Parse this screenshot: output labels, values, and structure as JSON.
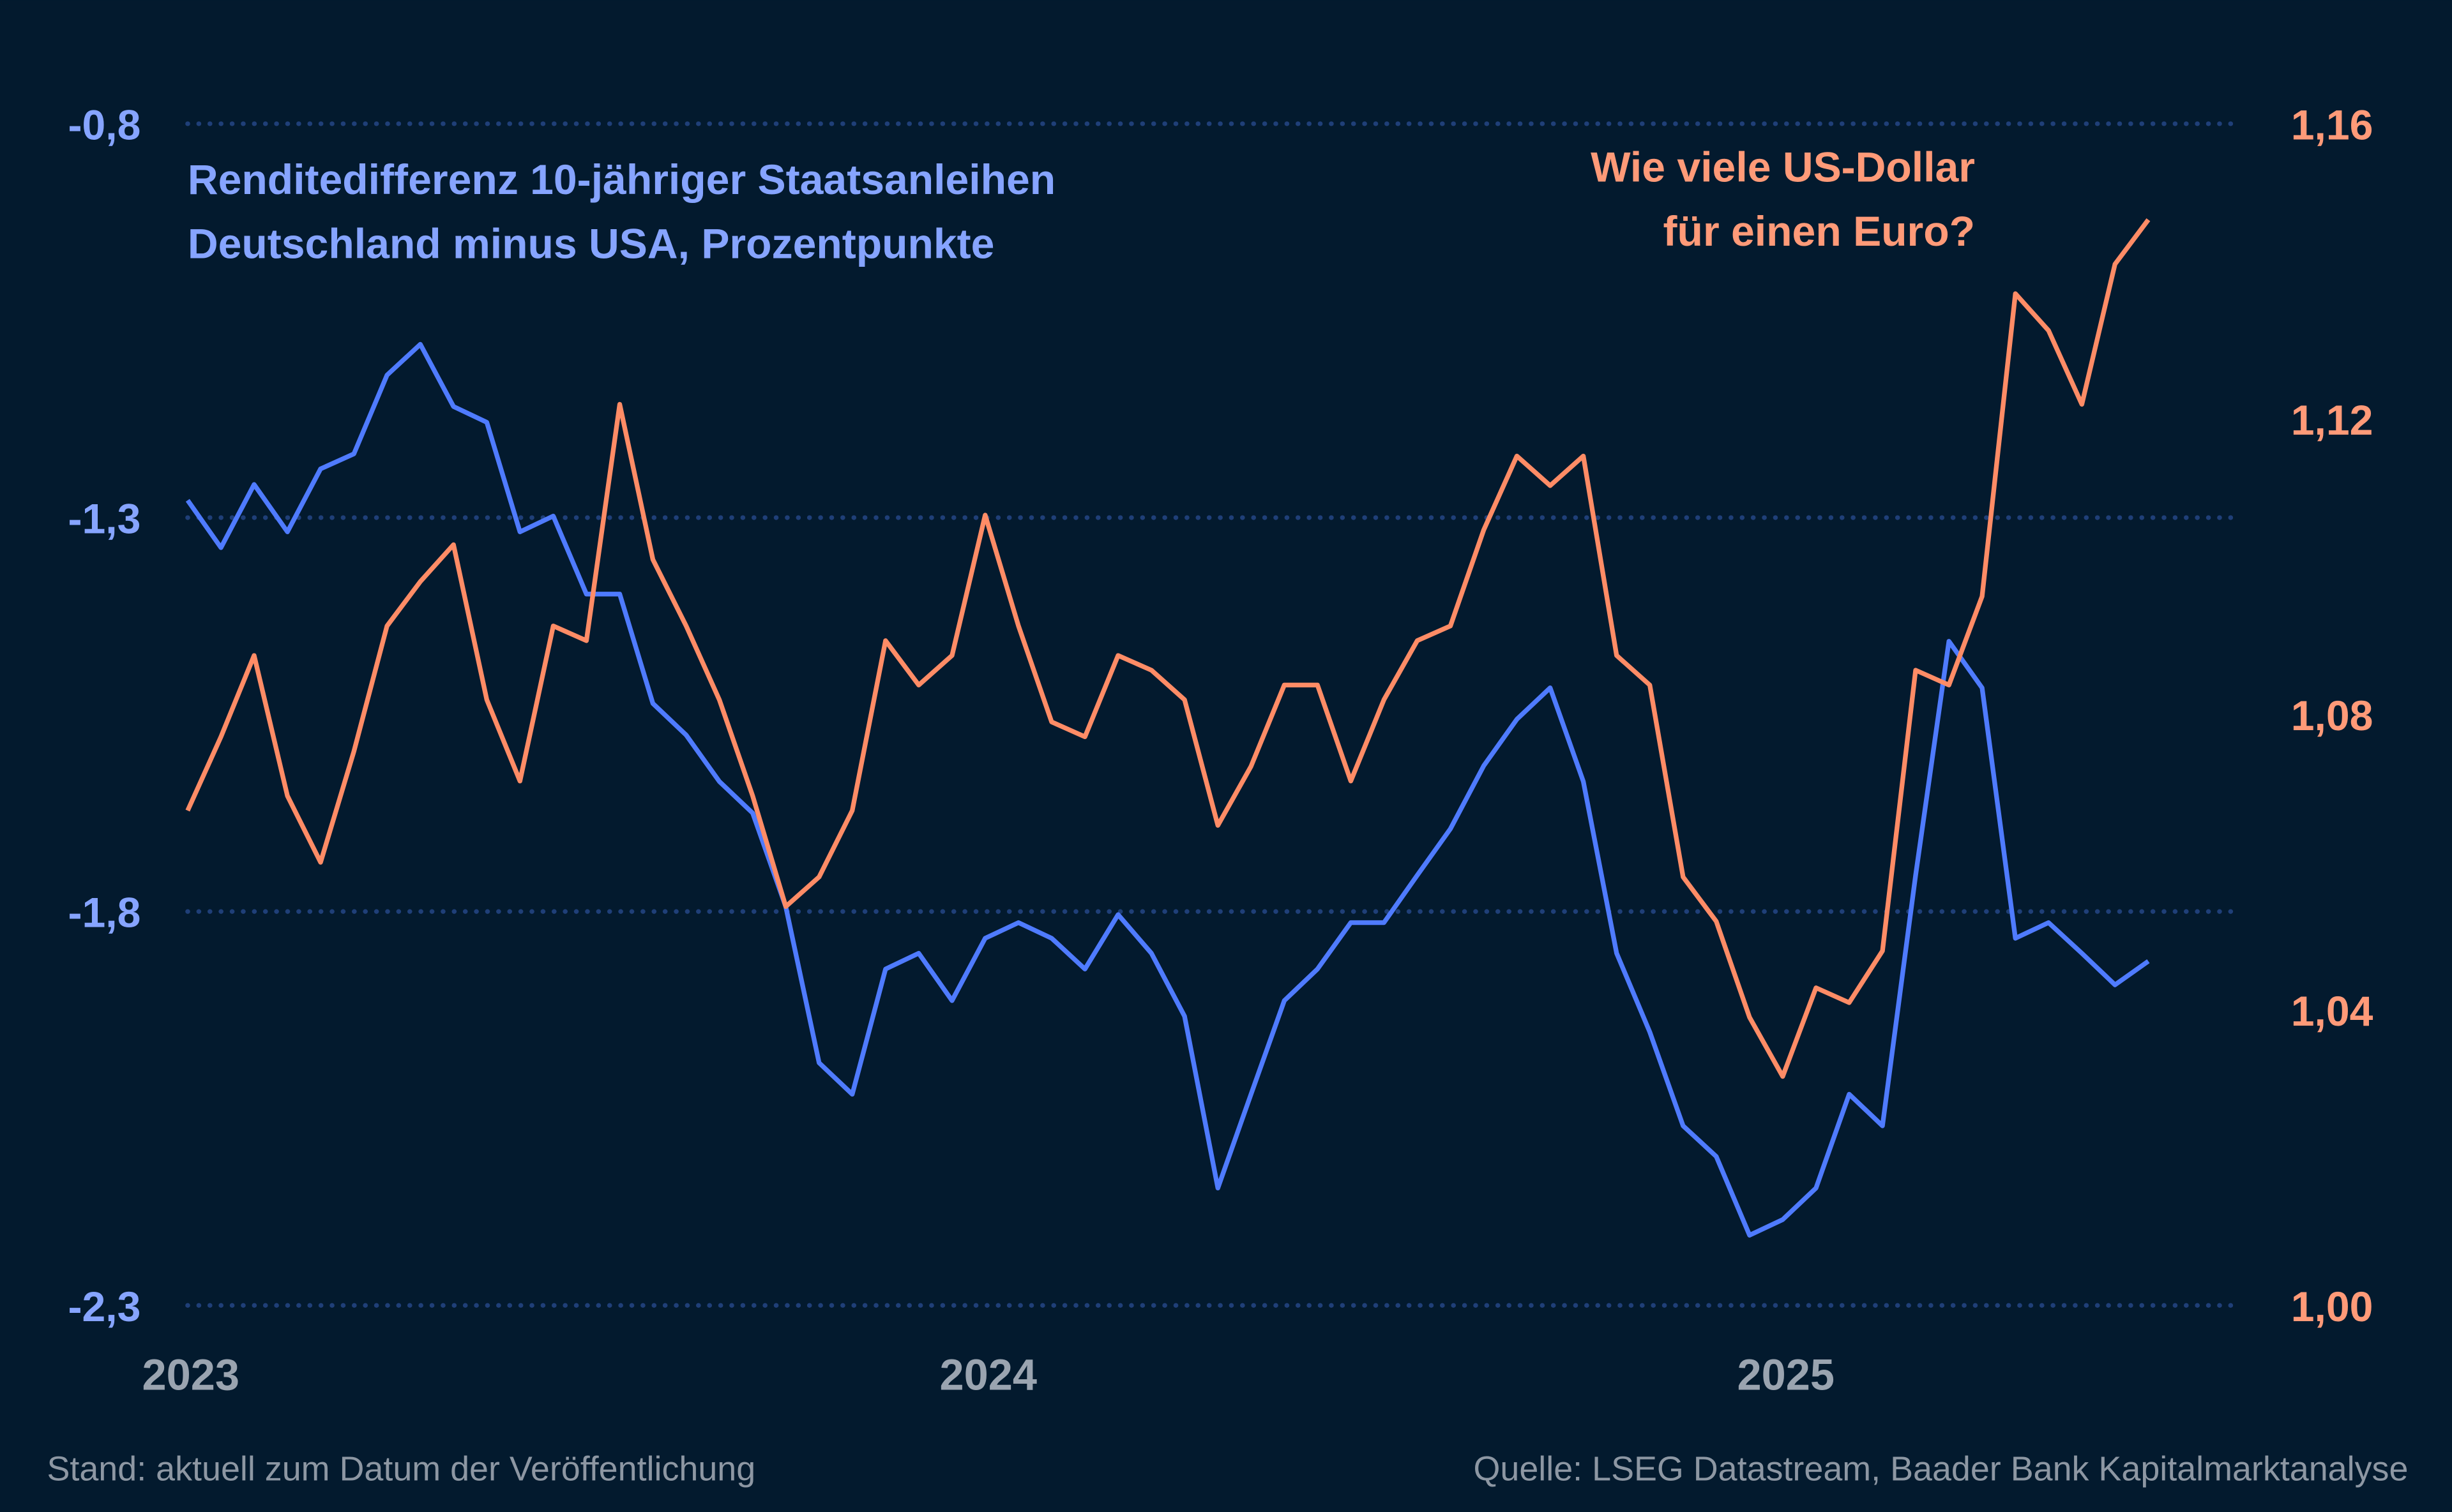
{
  "chart_data": {
    "type": "line",
    "title_left": [
      "Renditedifferenz 10-jähriger Staatsanleihen",
      "Deutschland minus USA, Prozentpunkte"
    ],
    "title_right": [
      "Wie viele US-Dollar",
      "für einen Euro?"
    ],
    "left_axis": {
      "ticks": [
        "-0,8",
        "-1,3",
        "-1,8",
        "-2,3"
      ],
      "tick_values": [
        -0.8,
        -1.3,
        -1.8,
        -2.3
      ],
      "range": [
        -2.3,
        -0.8
      ]
    },
    "right_axis": {
      "ticks": [
        "1,16",
        "1,12",
        "1,08",
        "1,04",
        "1,00"
      ],
      "tick_values": [
        1.16,
        1.12,
        1.08,
        1.04,
        1.0
      ],
      "range": [
        1.0,
        1.16
      ]
    },
    "x_axis": {
      "ticks": [
        "2023",
        "2024",
        "2025"
      ],
      "range": [
        "2023-01-01",
        "2025-07-01"
      ]
    },
    "grid": "horizontal dotted",
    "colors": {
      "background": "#031a2e",
      "spread": "#4f7bff",
      "eurusd": "#ff8c66",
      "grid": "#1f3f78"
    },
    "series": [
      {
        "axis": "left",
        "values": [
          -1.278,
          -1.338,
          -1.258,
          -1.318,
          -1.238,
          -1.219,
          -1.119,
          -1.08,
          -1.159,
          -1.179,
          -1.318,
          -1.298,
          -1.397,
          -1.397,
          -1.536,
          -1.576,
          -1.635,
          -1.675,
          -1.794,
          -1.992,
          -2.032,
          -1.873,
          -1.853,
          -1.913,
          -1.834,
          -1.814,
          -1.834,
          -1.873,
          -1.804,
          -1.853,
          -1.933,
          -2.151,
          -2.032,
          -1.913,
          -1.873,
          -1.814,
          -1.814,
          -1.754,
          -1.695,
          -1.615,
          -1.556,
          -1.516,
          -1.635,
          -1.853,
          -1.953,
          -2.072,
          -2.111,
          -2.211,
          -2.191,
          -2.151,
          -2.032,
          -2.072,
          -1.754,
          -1.457,
          -1.516,
          -1.834,
          -1.814,
          -1.853,
          -1.893,
          -1.863
        ]
      },
      {
        "axis": "right",
        "values": [
          1.067,
          1.077,
          1.088,
          1.069,
          1.06,
          1.075,
          1.092,
          1.098,
          1.103,
          1.082,
          1.071,
          1.092,
          1.09,
          1.122,
          1.101,
          1.092,
          1.082,
          1.069,
          1.054,
          1.058,
          1.067,
          1.09,
          1.084,
          1.088,
          1.107,
          1.092,
          1.079,
          1.077,
          1.088,
          1.086,
          1.082,
          1.065,
          1.073,
          1.084,
          1.084,
          1.071,
          1.082,
          1.09,
          1.092,
          1.105,
          1.115,
          1.111,
          1.115,
          1.088,
          1.084,
          1.058,
          1.052,
          1.039,
          1.031,
          1.043,
          1.041,
          1.048,
          1.086,
          1.084,
          1.096,
          1.137,
          1.132,
          1.122,
          1.141,
          1.147
        ]
      }
    ],
    "x_dates_rule": "semi-monthly, 1st and 15th of each month from 2023-01-01 to 2025-06-15"
  },
  "footer": {
    "left": "Stand: aktuell zum Datum der Veröffentlichung",
    "right": "Quelle: LSEG Datastream, Baader Bank Kapitalmarktanalyse"
  }
}
